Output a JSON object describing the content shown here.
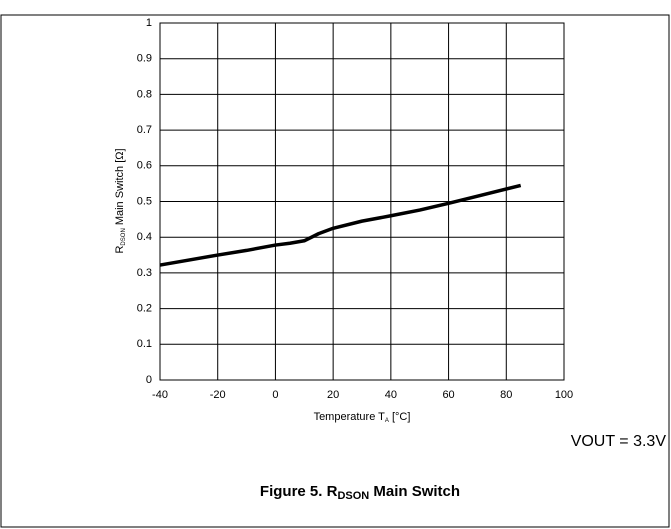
{
  "chart_data": {
    "type": "line",
    "title": {
      "text": "Figure 5. R",
      "sub": "DSON",
      "rest": " Main Switch"
    },
    "x_label": {
      "text": "Temperature T",
      "sub": "A",
      "rest": " [°C]"
    },
    "y_label": {
      "text": "R",
      "sub": "DSON",
      "rest": " Main Switch [Ω]"
    },
    "annotation": "VOUT = 3.3V",
    "x": [
      -40,
      -30,
      -20,
      -10,
      0,
      5,
      10,
      15,
      20,
      30,
      40,
      50,
      60,
      70,
      85
    ],
    "values": [
      0.322,
      0.336,
      0.35,
      0.363,
      0.378,
      0.383,
      0.39,
      0.41,
      0.425,
      0.445,
      0.46,
      0.476,
      0.495,
      0.515,
      0.545
    ],
    "color": "#000000",
    "xlim": [
      -40,
      100
    ],
    "xticks": [
      -40,
      -20,
      0,
      20,
      40,
      60,
      80,
      100
    ],
    "ylim": [
      0,
      1
    ],
    "yticks": [
      0,
      0.1,
      0.2,
      0.3,
      0.4,
      0.5,
      0.6,
      0.7,
      0.8,
      0.9,
      1
    ],
    "grid": true
  }
}
